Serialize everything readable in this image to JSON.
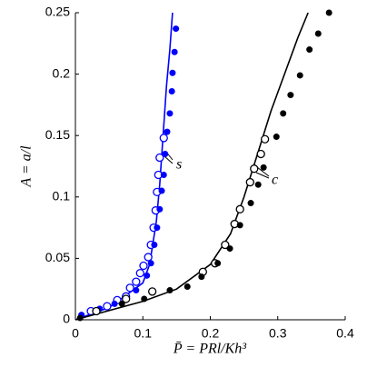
{
  "chart_data": {
    "type": "scatter",
    "xlabel": "P̄ = PRl/Kh³",
    "ylabel": "A = a/l",
    "annotations": [
      "s",
      "c"
    ],
    "xlim": [
      0,
      0.4
    ],
    "ylim": [
      0,
      0.25
    ],
    "xticks": [
      0,
      0.1,
      0.2,
      0.3,
      0.4
    ],
    "yticks": [
      0,
      0.05,
      0.1,
      0.15,
      0.2,
      0.25
    ],
    "series": [
      {
        "color": "#0000ff",
        "style": "line",
        "x": [
          0,
          0.05,
          0.1,
          0.11,
          0.12,
          0.125,
          0.13,
          0.135,
          0.14,
          0.144
        ],
        "values": [
          0,
          0.01,
          0.03,
          0.045,
          0.08,
          0.11,
          0.15,
          0.19,
          0.22,
          0.25
        ]
      },
      {
        "color": "#0000ff",
        "style": "open-circle",
        "x": [
          0.023,
          0.047,
          0.062,
          0.075,
          0.081,
          0.09,
          0.096,
          0.101,
          0.108,
          0.112,
          0.116,
          0.119,
          0.121,
          0.123,
          0.125,
          0.131
        ],
        "values": [
          0.007,
          0.011,
          0.016,
          0.019,
          0.026,
          0.031,
          0.038,
          0.044,
          0.051,
          0.061,
          0.075,
          0.089,
          0.104,
          0.118,
          0.132,
          0.148
        ]
      },
      {
        "color": "#0000ff",
        "style": "filled-circle",
        "x": [
          0.009,
          0.036,
          0.058,
          0.09,
          0.106,
          0.112,
          0.117,
          0.121,
          0.125,
          0.128,
          0.131,
          0.133,
          0.136,
          0.14,
          0.143,
          0.144,
          0.147,
          0.149
        ],
        "values": [
          0.004,
          0.009,
          0.013,
          0.024,
          0.036,
          0.046,
          0.061,
          0.075,
          0.09,
          0.105,
          0.118,
          0.135,
          0.153,
          0.168,
          0.186,
          0.201,
          0.218,
          0.237
        ]
      },
      {
        "color": "#000000",
        "style": "line",
        "x": [
          0,
          0.1,
          0.15,
          0.2,
          0.23,
          0.25,
          0.27,
          0.29,
          0.31,
          0.33,
          0.345
        ],
        "values": [
          0,
          0.015,
          0.025,
          0.045,
          0.07,
          0.1,
          0.135,
          0.17,
          0.2,
          0.23,
          0.25
        ]
      },
      {
        "color": "#000000",
        "style": "open-circle",
        "x": [
          0.031,
          0.075,
          0.114,
          0.189,
          0.207,
          0.222,
          0.236,
          0.244,
          0.259,
          0.265,
          0.275,
          0.281
        ],
        "values": [
          0.007,
          0.017,
          0.023,
          0.039,
          0.046,
          0.061,
          0.078,
          0.09,
          0.112,
          0.123,
          0.135,
          0.147
        ]
      },
      {
        "color": "#000000",
        "style": "filled-circle",
        "x": [
          0.007,
          0.069,
          0.102,
          0.14,
          0.166,
          0.187,
          0.211,
          0.229,
          0.244,
          0.26,
          0.271,
          0.279,
          0.298,
          0.308,
          0.319,
          0.333,
          0.347,
          0.36,
          0.376
        ],
        "values": [
          0.0015,
          0.013,
          0.017,
          0.024,
          0.027,
          0.035,
          0.046,
          0.058,
          0.077,
          0.095,
          0.11,
          0.124,
          0.149,
          0.168,
          0.183,
          0.199,
          0.22,
          0.233,
          0.25
        ]
      }
    ]
  }
}
